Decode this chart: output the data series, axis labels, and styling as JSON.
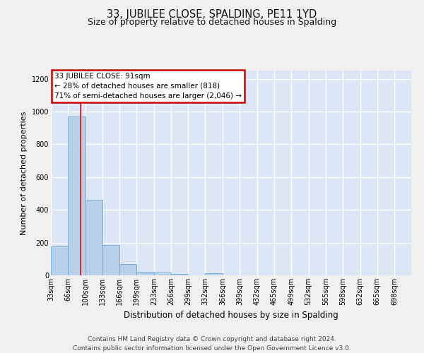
{
  "title": "33, JUBILEE CLOSE, SPALDING, PE11 1YD",
  "subtitle": "Size of property relative to detached houses in Spalding",
  "xlabel": "Distribution of detached houses by size in Spalding",
  "ylabel": "Number of detached properties",
  "categories": [
    "33sqm",
    "66sqm",
    "100sqm",
    "133sqm",
    "166sqm",
    "199sqm",
    "233sqm",
    "266sqm",
    "299sqm",
    "332sqm",
    "366sqm",
    "399sqm",
    "432sqm",
    "465sqm",
    "499sqm",
    "532sqm",
    "565sqm",
    "598sqm",
    "632sqm",
    "665sqm",
    "698sqm"
  ],
  "bin_edges": [
    33,
    66,
    100,
    133,
    166,
    199,
    233,
    266,
    299,
    332,
    366,
    399,
    432,
    465,
    499,
    532,
    565,
    598,
    632,
    665,
    698,
    731
  ],
  "bar_heights": [
    175,
    970,
    462,
    185,
    68,
    22,
    17,
    10,
    0,
    15,
    0,
    0,
    0,
    0,
    0,
    0,
    0,
    0,
    0,
    0,
    0
  ],
  "bar_color": "#b8d0e8",
  "bar_edge_color": "#6aaad4",
  "plot_bg_color": "#dce6f5",
  "grid_color": "#ffffff",
  "fig_bg_color": "#f0f0f0",
  "property_line_x": 91,
  "annotation_line1": "33 JUBILEE CLOSE: 91sqm",
  "annotation_line2": "← 28% of detached houses are smaller (818)",
  "annotation_line3": "71% of semi-detached houses are larger (2,046) →",
  "annotation_box_facecolor": "#ffffff",
  "annotation_box_edgecolor": "#cc0000",
  "footnote_line1": "Contains HM Land Registry data © Crown copyright and database right 2024.",
  "footnote_line2": "Contains public sector information licensed under the Open Government Licence v3.0.",
  "ylim": [
    0,
    1250
  ],
  "yticks": [
    0,
    200,
    400,
    600,
    800,
    1000,
    1200
  ],
  "title_fontsize": 10.5,
  "subtitle_fontsize": 9,
  "xlabel_fontsize": 8.5,
  "ylabel_fontsize": 8,
  "tick_fontsize": 7,
  "annot_fontsize": 7.5,
  "footnote_fontsize": 6.5
}
